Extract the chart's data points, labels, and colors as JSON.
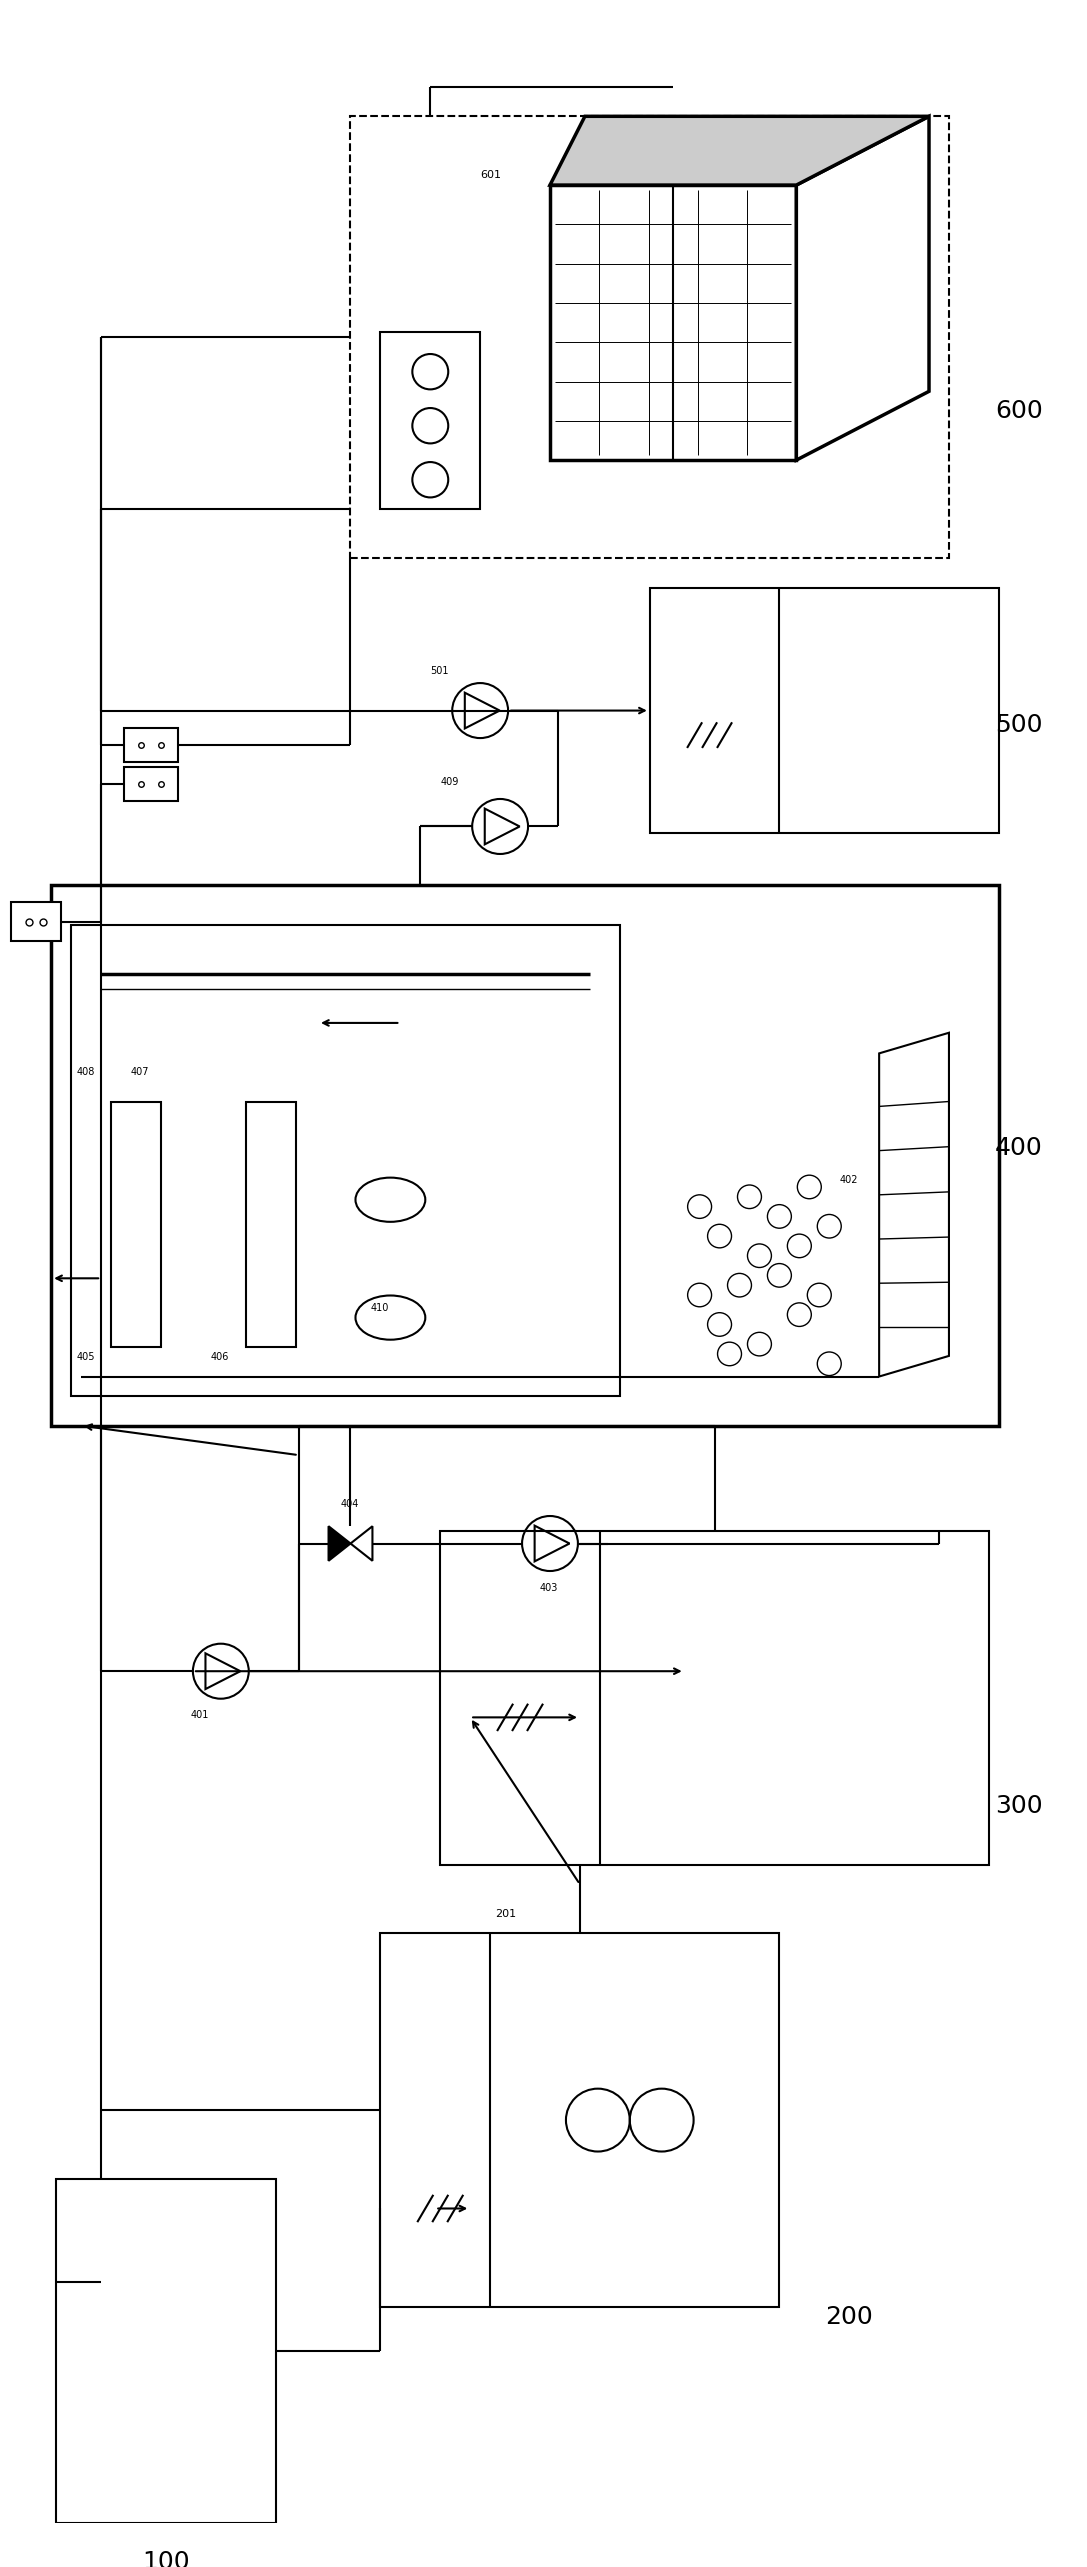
{
  "bg_color": "#ffffff",
  "line_color": "#000000",
  "fig_width": 10.87,
  "fig_height": 25.67,
  "dpi": 100
}
